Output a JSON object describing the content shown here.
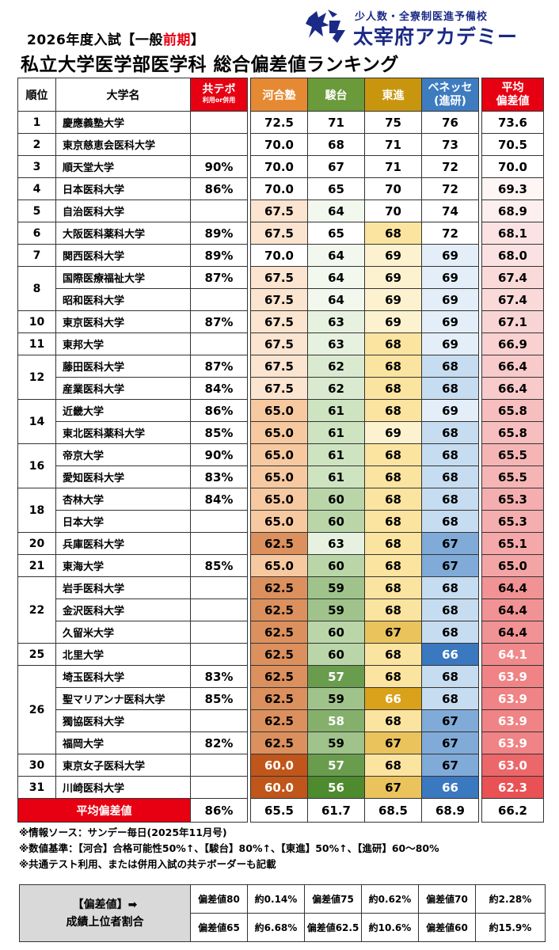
{
  "header": {
    "title_prefix": "2026年度入試【一般",
    "title_highlight": "前期",
    "title_suffix": "】",
    "title_main": "私立大学医学部医学科 総合偏差値ランキング",
    "logo_sub": "少人数・全寮制医進予備校",
    "logo_name": "太宰府アカデミー"
  },
  "columns": {
    "rank": "順位",
    "name": "大学名",
    "kyotest": "共テボ",
    "kyotest_sub": "利用or併用",
    "kawai": "河合塾",
    "sundai": "駿台",
    "toshin": "東進",
    "benesse_1": "ベネッセ",
    "benesse_2": "(進研)",
    "avg_1": "平均",
    "avg_2": "偏差値"
  },
  "rows": [
    {
      "rank": "1",
      "name": "慶應義塾大学",
      "kyotest": "",
      "kawai": "72.5",
      "sundai": "71",
      "toshin": "75",
      "benesse": "76",
      "avg": "73.6"
    },
    {
      "rank": "2",
      "name": "東京慈恵会医科大学",
      "kyotest": "",
      "kawai": "70.0",
      "sundai": "68",
      "toshin": "71",
      "benesse": "73",
      "avg": "70.5"
    },
    {
      "rank": "3",
      "name": "順天堂大学",
      "kyotest": "90%",
      "kawai": "70.0",
      "sundai": "67",
      "toshin": "71",
      "benesse": "72",
      "avg": "70.0"
    },
    {
      "rank": "4",
      "name": "日本医科大学",
      "kyotest": "86%",
      "kawai": "70.0",
      "sundai": "65",
      "toshin": "70",
      "benesse": "72",
      "avg": "69.3"
    },
    {
      "rank": "5",
      "name": "自治医科大学",
      "kyotest": "",
      "kawai": "67.5",
      "sundai": "64",
      "toshin": "70",
      "benesse": "74",
      "avg": "68.9"
    },
    {
      "rank": "6",
      "name": "大阪医科薬科大学",
      "kyotest": "89%",
      "kawai": "67.5",
      "sundai": "65",
      "toshin": "68",
      "benesse": "72",
      "avg": "68.1"
    },
    {
      "rank": "7",
      "name": "関西医科大学",
      "kyotest": "89%",
      "kawai": "70.0",
      "sundai": "64",
      "toshin": "69",
      "benesse": "69",
      "avg": "68.0"
    },
    {
      "rank": "8",
      "name": "国際医療福祉大学",
      "kyotest": "87%",
      "kawai": "67.5",
      "sundai": "64",
      "toshin": "69",
      "benesse": "69",
      "avg": "67.4"
    },
    {
      "rank": "",
      "name": "昭和医科大学",
      "kyotest": "",
      "kawai": "67.5",
      "sundai": "64",
      "toshin": "69",
      "benesse": "69",
      "avg": "67.4"
    },
    {
      "rank": "10",
      "name": "東京医科大学",
      "kyotest": "87%",
      "kawai": "67.5",
      "sundai": "63",
      "toshin": "69",
      "benesse": "69",
      "avg": "67.1"
    },
    {
      "rank": "11",
      "name": "東邦大学",
      "kyotest": "",
      "kawai": "67.5",
      "sundai": "63",
      "toshin": "68",
      "benesse": "69",
      "avg": "66.9"
    },
    {
      "rank": "12",
      "name": "藤田医科大学",
      "kyotest": "87%",
      "kawai": "67.5",
      "sundai": "62",
      "toshin": "68",
      "benesse": "68",
      "avg": "66.4"
    },
    {
      "rank": "",
      "name": "産業医科大学",
      "kyotest": "84%",
      "kawai": "67.5",
      "sundai": "62",
      "toshin": "68",
      "benesse": "68",
      "avg": "66.4"
    },
    {
      "rank": "14",
      "name": "近畿大学",
      "kyotest": "86%",
      "kawai": "65.0",
      "sundai": "61",
      "toshin": "68",
      "benesse": "69",
      "avg": "65.8"
    },
    {
      "rank": "",
      "name": "東北医科薬科大学",
      "kyotest": "85%",
      "kawai": "65.0",
      "sundai": "61",
      "toshin": "69",
      "benesse": "68",
      "avg": "65.8"
    },
    {
      "rank": "16",
      "name": "帝京大学",
      "kyotest": "90%",
      "kawai": "65.0",
      "sundai": "61",
      "toshin": "68",
      "benesse": "68",
      "avg": "65.5"
    },
    {
      "rank": "",
      "name": "愛知医科大学",
      "kyotest": "83%",
      "kawai": "65.0",
      "sundai": "61",
      "toshin": "68",
      "benesse": "68",
      "avg": "65.5"
    },
    {
      "rank": "18",
      "name": "杏林大学",
      "kyotest": "84%",
      "kawai": "65.0",
      "sundai": "60",
      "toshin": "68",
      "benesse": "68",
      "avg": "65.3"
    },
    {
      "rank": "",
      "name": "日本大学",
      "kyotest": "",
      "kawai": "65.0",
      "sundai": "60",
      "toshin": "68",
      "benesse": "68",
      "avg": "65.3"
    },
    {
      "rank": "20",
      "name": "兵庫医科大学",
      "kyotest": "",
      "kawai": "62.5",
      "sundai": "63",
      "toshin": "68",
      "benesse": "67",
      "avg": "65.1"
    },
    {
      "rank": "21",
      "name": "東海大学",
      "kyotest": "85%",
      "kawai": "65.0",
      "sundai": "60",
      "toshin": "68",
      "benesse": "67",
      "avg": "65.0"
    },
    {
      "rank": "22",
      "name": "岩手医科大学",
      "kyotest": "",
      "kawai": "62.5",
      "sundai": "59",
      "toshin": "68",
      "benesse": "68",
      "avg": "64.4"
    },
    {
      "rank": "",
      "name": "金沢医科大学",
      "kyotest": "",
      "kawai": "62.5",
      "sundai": "59",
      "toshin": "68",
      "benesse": "68",
      "avg": "64.4"
    },
    {
      "rank": "",
      "name": "久留米大学",
      "kyotest": "",
      "kawai": "62.5",
      "sundai": "60",
      "toshin": "67",
      "benesse": "68",
      "avg": "64.4"
    },
    {
      "rank": "25",
      "name": "北里大学",
      "kyotest": "",
      "kawai": "62.5",
      "sundai": "60",
      "toshin": "68",
      "benesse": "66",
      "avg": "64.1"
    },
    {
      "rank": "26",
      "name": "埼玉医科大学",
      "kyotest": "83%",
      "kawai": "62.5",
      "sundai": "57",
      "toshin": "68",
      "benesse": "68",
      "avg": "63.9"
    },
    {
      "rank": "",
      "name": "聖マリアンナ医科大学",
      "kyotest": "85%",
      "kawai": "62.5",
      "sundai": "59",
      "toshin": "66",
      "benesse": "68",
      "avg": "63.9"
    },
    {
      "rank": "",
      "name": "獨協医科大学",
      "kyotest": "",
      "kawai": "62.5",
      "sundai": "58",
      "toshin": "68",
      "benesse": "67",
      "avg": "63.9"
    },
    {
      "rank": "",
      "name": "福岡大学",
      "kyotest": "82%",
      "kawai": "62.5",
      "sundai": "59",
      "toshin": "67",
      "benesse": "67",
      "avg": "63.9"
    },
    {
      "rank": "30",
      "name": "東京女子医科大学",
      "kyotest": "",
      "kawai": "60.0",
      "sundai": "57",
      "toshin": "68",
      "benesse": "67",
      "avg": "63.0"
    },
    {
      "rank": "31",
      "name": "川崎医科大学",
      "kyotest": "",
      "kawai": "60.0",
      "sundai": "56",
      "toshin": "67",
      "benesse": "66",
      "avg": "62.3"
    }
  ],
  "rank_spans": [
    1,
    1,
    1,
    1,
    1,
    1,
    1,
    2,
    0,
    1,
    1,
    2,
    0,
    2,
    0,
    2,
    0,
    2,
    0,
    1,
    1,
    3,
    0,
    0,
    1,
    4,
    0,
    0,
    0,
    1,
    1
  ],
  "average_row": {
    "label": "平均偏差値",
    "kyotest": "86%",
    "kawai": "65.5",
    "sundai": "61.7",
    "toshin": "68.5",
    "benesse": "68.9",
    "avg": "66.2"
  },
  "notes": [
    "※情報ソース：サンデー毎日(2025年11月号)",
    "※数値基準：【河合】合格可能性50%↑、【駿台】80%↑、【東進】50%↑、【進研】60～80%",
    "※共通テスト利用、または併用入試の共テボーダーも記載"
  ],
  "ratio_table": {
    "label_1": "【偏差値】➡",
    "label_2": "成績上位者割合",
    "rows": [
      [
        [
          "偏差値80",
          "約0.14%"
        ],
        [
          "偏差値75",
          "約0.62%"
        ],
        [
          "偏差値70",
          "約2.28%"
        ]
      ],
      [
        [
          "偏差値65",
          "約6.68%"
        ],
        [
          "偏差値62.5",
          "約10.6%"
        ],
        [
          "偏差値60",
          "約15.9%"
        ]
      ]
    ]
  },
  "colors": {
    "red": "#e60012",
    "kawai_header": "#e58a32",
    "sundai_header": "#6a9a3a",
    "toshin_header": "#c8960e",
    "benesse_header": "#3e7cc0",
    "logo_blue": "#1a2a86"
  }
}
